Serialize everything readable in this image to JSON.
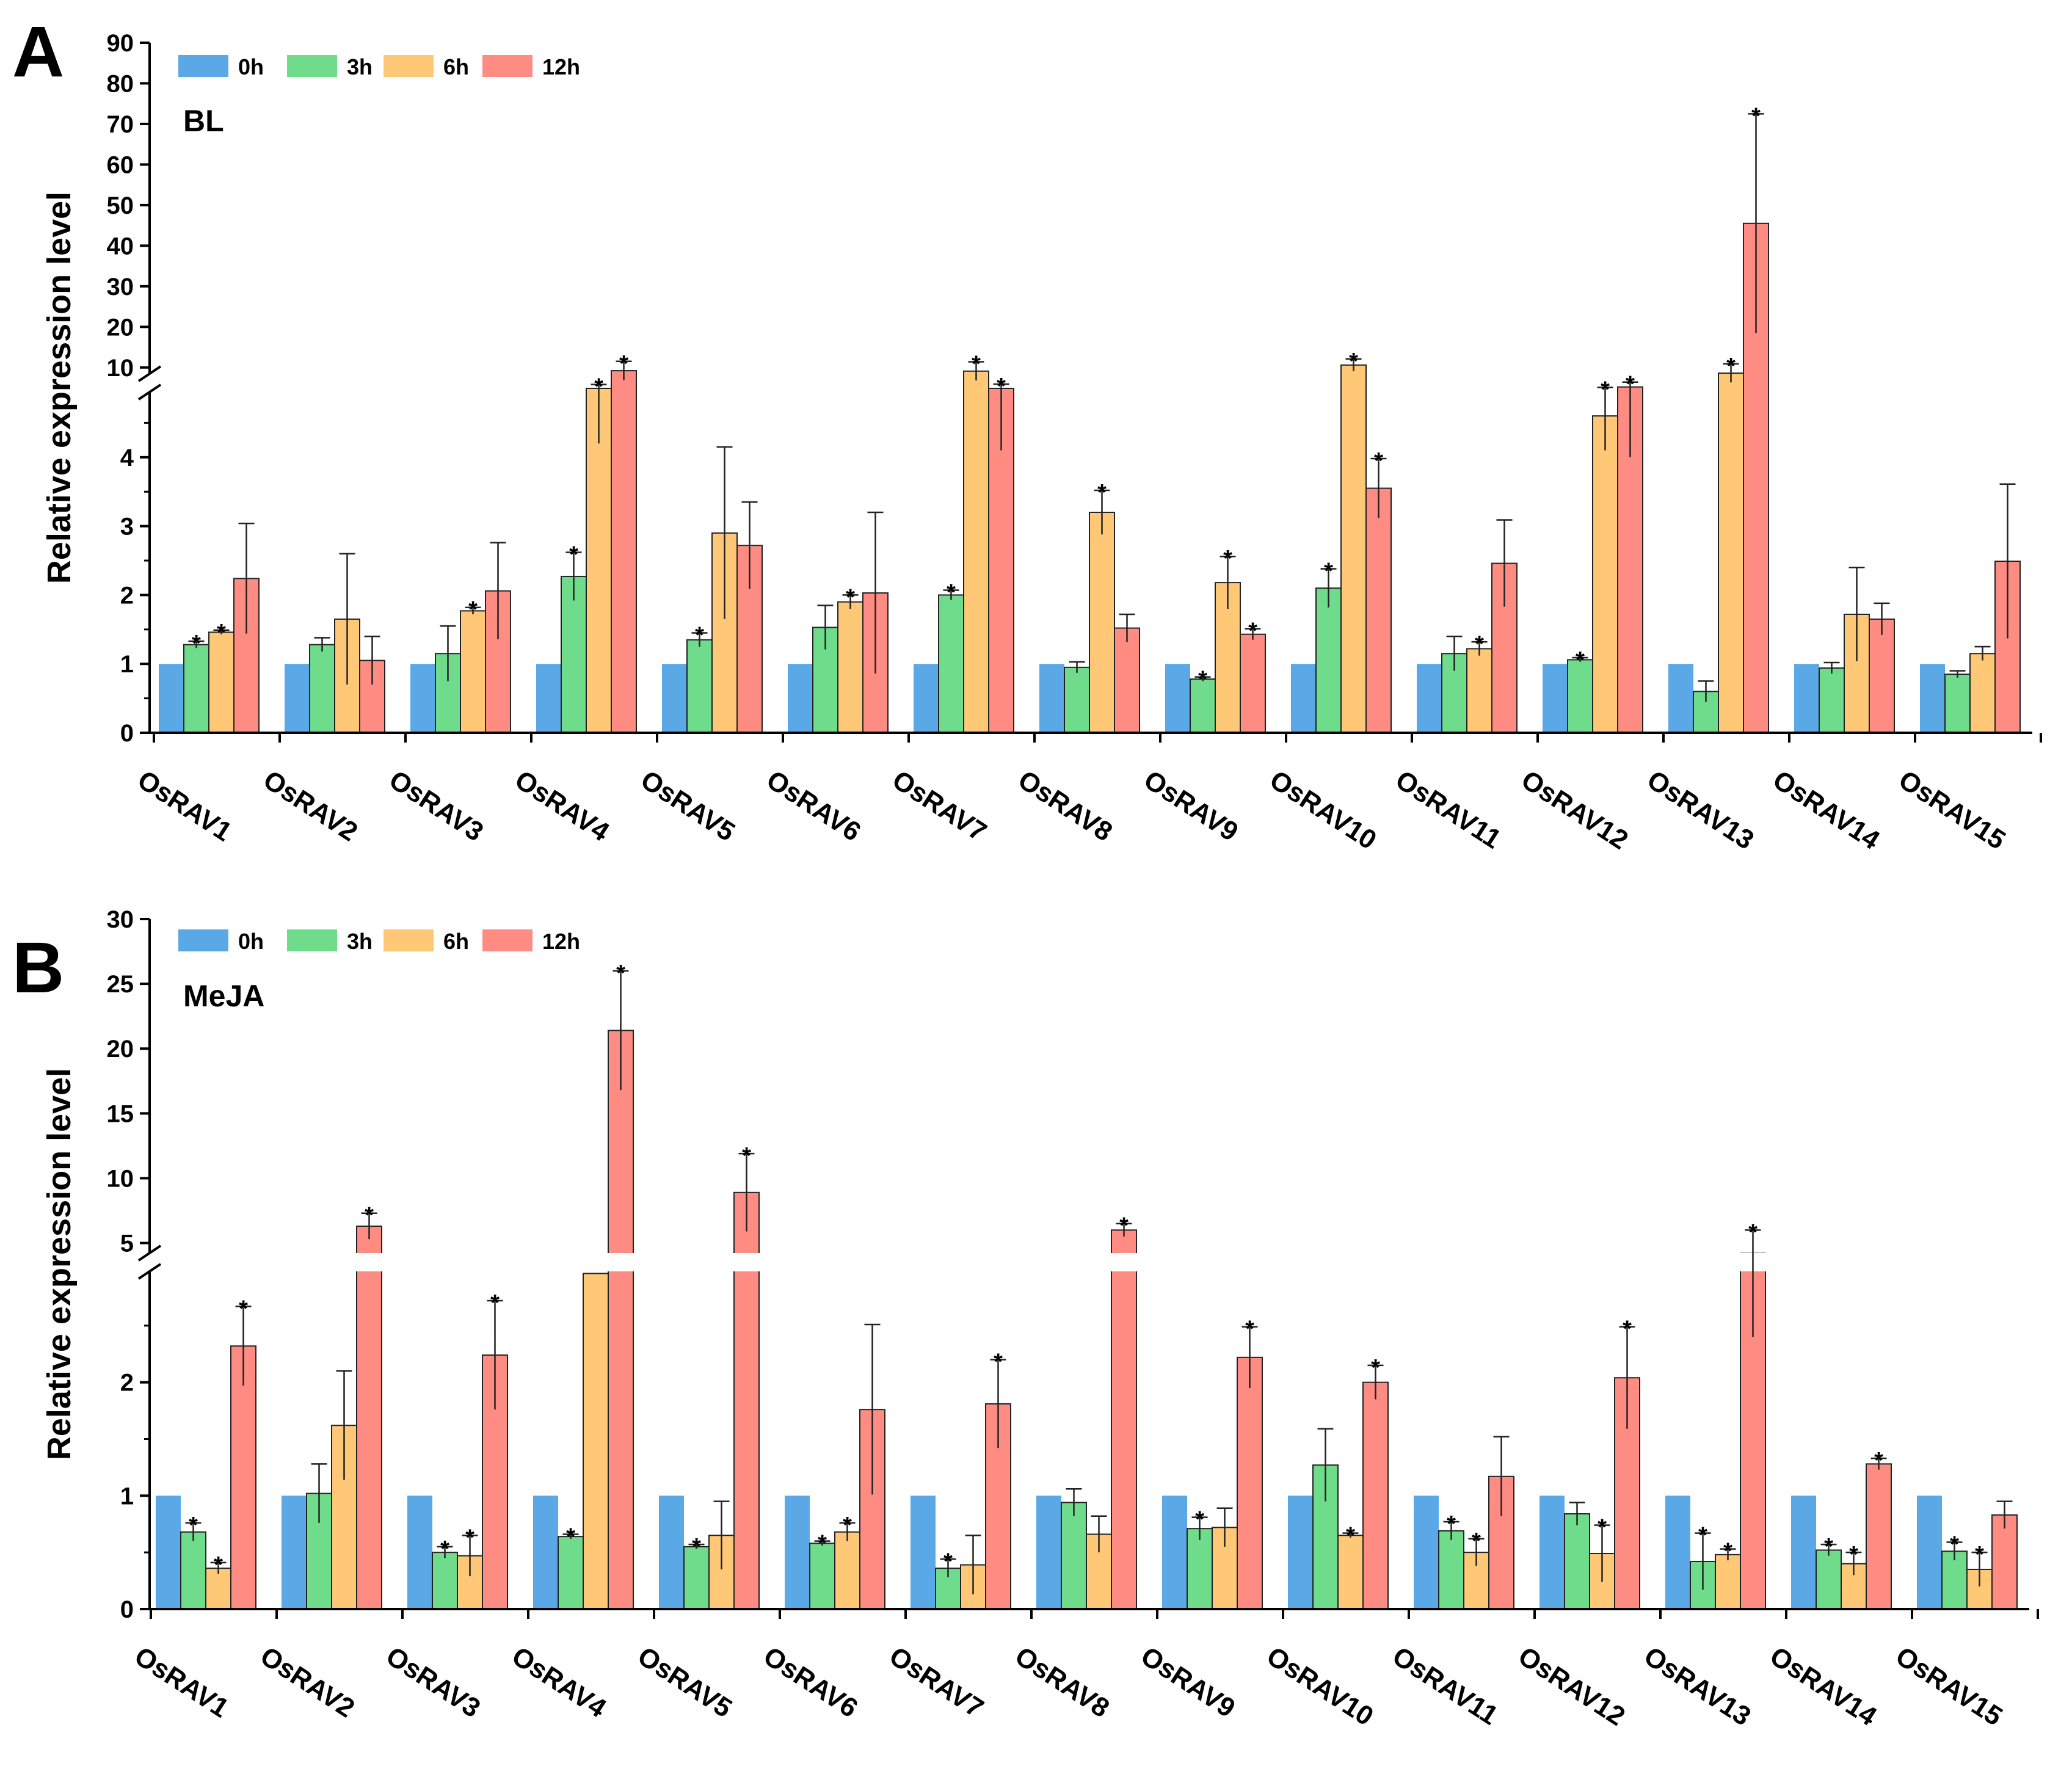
{
  "chart_data": [
    {
      "type": "bar",
      "panel": "A",
      "treatment": "BL",
      "ylabel": "Relative expression level",
      "xlabel": "",
      "axis_break": true,
      "ylim_lower": [
        0,
        5
      ],
      "ylim_upper": [
        5,
        90
      ],
      "yticks_lower": [
        0,
        1,
        2,
        3,
        4
      ],
      "yticks_upper": [
        10,
        20,
        30,
        40,
        50,
        60,
        70,
        80,
        90
      ],
      "legend": [
        "0h",
        "3h",
        "6h",
        "12h"
      ],
      "legend_position": "top-left",
      "colors": [
        "#5aa9e6",
        "#6fdc8c",
        "#ffc876",
        "#ff8c82"
      ],
      "categories": [
        "OsRAV1",
        "OsRAV2",
        "OsRAV3",
        "OsRAV4",
        "OsRAV5",
        "OsRAV6",
        "OsRAV7",
        "OsRAV8",
        "OsRAV9",
        "OsRAV10",
        "OsRAV11",
        "OsRAV12",
        "OsRAV13",
        "OsRAV14",
        "OsRAV15"
      ],
      "series": [
        {
          "name": "0h",
          "values": [
            1,
            1,
            1,
            1,
            1,
            1,
            1,
            1,
            1,
            1,
            1,
            1,
            1,
            1,
            1
          ],
          "errors": [
            0,
            0,
            0,
            0,
            0,
            0,
            0,
            0,
            0,
            0,
            0,
            0,
            0,
            0,
            0
          ],
          "sig": [
            false,
            false,
            false,
            false,
            false,
            false,
            false,
            false,
            false,
            false,
            false,
            false,
            false,
            false,
            false
          ]
        },
        {
          "name": "3h",
          "values": [
            1.28,
            1.28,
            1.15,
            2.27,
            1.35,
            1.53,
            2.0,
            0.95,
            0.78,
            2.1,
            1.15,
            1.06,
            0.6,
            0.94,
            0.85
          ],
          "errors": [
            0.05,
            0.1,
            0.4,
            0.35,
            0.1,
            0.32,
            0.07,
            0.08,
            0.03,
            0.28,
            0.25,
            0.03,
            0.15,
            0.08,
            0.05
          ],
          "sig": [
            true,
            false,
            false,
            true,
            true,
            false,
            true,
            false,
            true,
            true,
            false,
            true,
            false,
            false,
            false
          ]
        },
        {
          "name": "6h",
          "values": [
            1.46,
            1.65,
            1.77,
            5.0,
            2.9,
            1.9,
            9.1,
            3.2,
            2.18,
            10.6,
            1.22,
            4.6,
            8.6,
            1.72,
            1.15
          ],
          "errors": [
            0.03,
            0.95,
            0.05,
            0.8,
            1.25,
            0.1,
            2.3,
            0.32,
            0.38,
            1.5,
            0.1,
            0.5,
            2.3,
            0.68,
            0.1
          ],
          "sig": [
            true,
            false,
            true,
            true,
            false,
            true,
            true,
            true,
            true,
            true,
            true,
            true,
            true,
            false,
            false
          ]
        },
        {
          "name": "12h",
          "values": [
            2.24,
            1.05,
            2.06,
            9.2,
            2.72,
            2.03,
            5.0,
            1.52,
            1.43,
            3.55,
            2.46,
            5.2,
            45.5,
            1.65,
            2.49
          ],
          "errors": [
            0.8,
            0.35,
            0.7,
            2.3,
            0.63,
            1.17,
            0.9,
            0.2,
            0.08,
            0.43,
            0.63,
            1.2,
            27,
            0.23,
            1.12
          ],
          "sig": [
            false,
            false,
            false,
            true,
            false,
            false,
            true,
            false,
            true,
            true,
            false,
            true,
            true,
            false,
            false
          ]
        }
      ]
    },
    {
      "type": "bar",
      "panel": "B",
      "treatment": "MeJA",
      "ylabel": "Relative expression level",
      "xlabel": "",
      "axis_break": true,
      "ylim_lower": [
        0,
        3
      ],
      "ylim_upper": [
        3,
        30
      ],
      "yticks_lower": [
        0,
        1,
        2
      ],
      "yticks_upper": [
        5,
        10,
        15,
        20,
        25,
        30
      ],
      "legend": [
        "0h",
        "3h",
        "6h",
        "12h"
      ],
      "legend_position": "top-left",
      "colors": [
        "#5aa9e6",
        "#6fdc8c",
        "#ffc876",
        "#ff8c82"
      ],
      "categories": [
        "OsRAV1",
        "OsRAV2",
        "OsRAV3",
        "OsRAV4",
        "OsRAV5",
        "OsRAV6",
        "OsRAV7",
        "OsRAV8",
        "OsRAV9",
        "OsRAV10",
        "OsRAV11",
        "OsRAV12",
        "OsRAV13",
        "OsRAV14",
        "OsRAV15"
      ],
      "series": [
        {
          "name": "0h",
          "values": [
            1,
            1,
            1,
            1,
            1,
            1,
            1,
            1,
            1,
            1,
            1,
            1,
            1,
            1,
            1
          ],
          "errors": [
            0,
            0,
            0,
            0,
            0,
            0,
            0,
            0,
            0,
            0,
            0,
            0,
            0,
            0,
            0
          ],
          "sig": [
            false,
            false,
            false,
            false,
            false,
            false,
            false,
            false,
            false,
            false,
            false,
            false,
            false,
            false,
            false
          ]
        },
        {
          "name": "3h",
          "values": [
            0.68,
            1.02,
            0.5,
            0.64,
            0.55,
            0.58,
            0.36,
            0.94,
            0.71,
            1.27,
            0.69,
            0.84,
            0.42,
            0.52,
            0.51
          ],
          "errors": [
            0.08,
            0.26,
            0.05,
            0.02,
            0.02,
            0.02,
            0.08,
            0.12,
            0.1,
            0.32,
            0.08,
            0.1,
            0.25,
            0.05,
            0.08
          ],
          "sig": [
            true,
            false,
            true,
            true,
            true,
            true,
            true,
            false,
            true,
            false,
            true,
            false,
            true,
            true,
            true
          ]
        },
        {
          "name": "6h",
          "values": [
            0.36,
            1.62,
            0.47,
            2.96,
            0.65,
            0.68,
            0.39,
            0.66,
            0.72,
            0.65,
            0.5,
            0.49,
            0.48,
            0.4,
            0.35
          ],
          "errors": [
            0.05,
            0.48,
            0.18,
            0,
            0.3,
            0.08,
            0.26,
            0.16,
            0.17,
            0.02,
            0.12,
            0.25,
            0.05,
            0.1,
            0.15
          ],
          "sig": [
            true,
            false,
            true,
            false,
            false,
            true,
            false,
            false,
            false,
            true,
            true,
            true,
            true,
            true,
            true
          ]
        },
        {
          "name": "12h",
          "values": [
            2.32,
            6.3,
            2.24,
            21.4,
            8.9,
            1.76,
            1.81,
            6.0,
            2.22,
            2.0,
            1.17,
            2.04,
            4.2,
            1.28,
            0.83
          ],
          "errors": [
            0.35,
            1.0,
            0.48,
            4.6,
            3.0,
            0.75,
            0.39,
            0.5,
            0.27,
            0.15,
            0.35,
            0.45,
            1.8,
            0.05,
            0.12
          ],
          "sig": [
            true,
            true,
            true,
            true,
            true,
            false,
            true,
            true,
            true,
            true,
            false,
            true,
            true,
            true,
            false
          ]
        }
      ]
    }
  ]
}
